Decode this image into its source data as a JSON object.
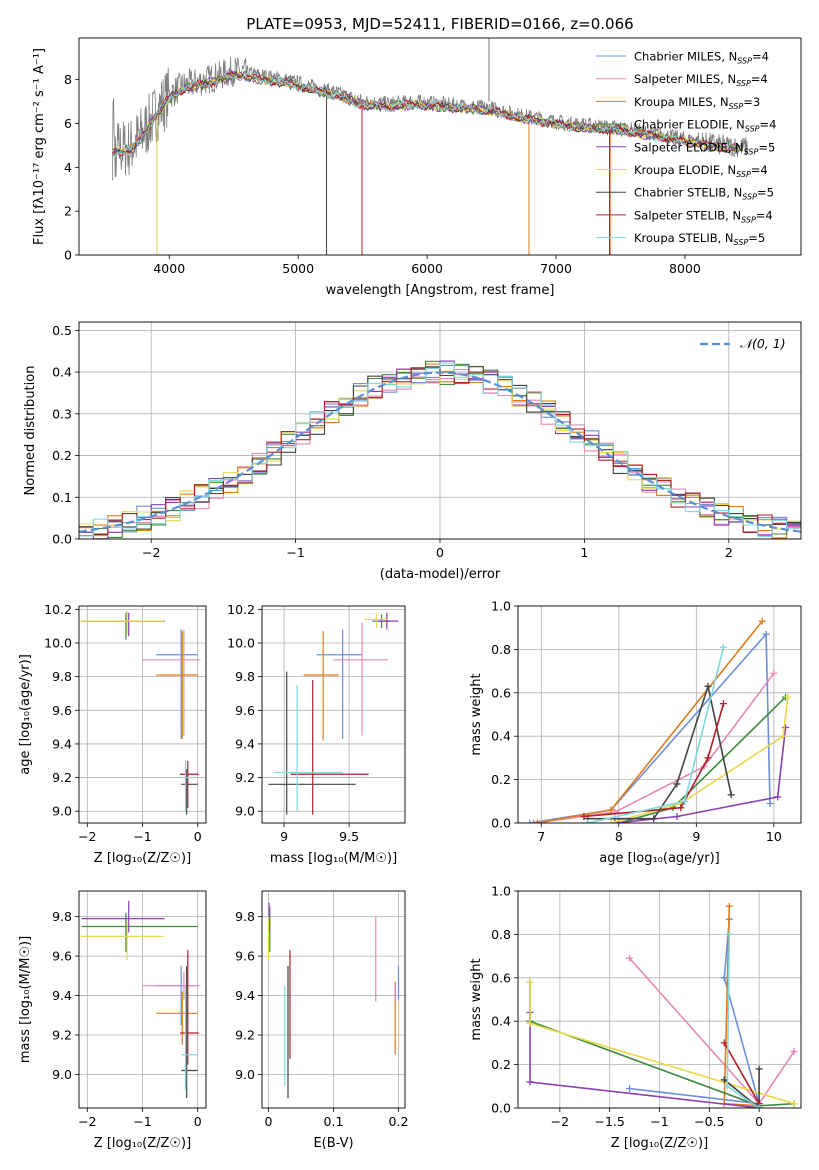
{
  "figure": {
    "title": "PLATE=0953, MJD=52411, FIBERID=0166, z=0.066"
  },
  "colors": {
    "Chabrier MILES": "#6b8fd8",
    "Salpeter MILES": "#e58ab8",
    "Kroupa MILES": "#e07b1a",
    "Chabrier ELODIE": "#3c8a3c",
    "Salpeter ELODIE": "#8e3fb5",
    "Kroupa ELODIE": "#e8d84a",
    "Chabrier STELIB": "#444444",
    "Salpeter STELIB": "#b0202a",
    "Kroupa STELIB": "#7fd8dc",
    "data": "#7f7f7f"
  },
  "chart_data": [
    {
      "id": "spectrum",
      "type": "line",
      "xlabel": "wavelength [Angstrom, rest frame]",
      "ylabel": "Flux [fλ10⁻¹⁷ erg cm⁻² s⁻¹ A⁻¹]",
      "xlim": [
        3300,
        8900
      ],
      "ylim": [
        0,
        9.9
      ],
      "xticks": [
        4000,
        5000,
        6000,
        7000,
        8000
      ],
      "yticks": [
        0,
        2,
        4,
        6,
        8
      ],
      "legend": "right",
      "legend_entries": [
        {
          "model": "Chabrier MILES",
          "n": "4"
        },
        {
          "model": "Salpeter MILES",
          "n": "4"
        },
        {
          "model": "Kroupa MILES",
          "n": "3"
        },
        {
          "model": "Chabrier ELODIE",
          "n": "4"
        },
        {
          "model": "Salpeter ELODIE",
          "n": "5"
        },
        {
          "model": "Kroupa ELODIE",
          "n": "4"
        },
        {
          "model": "Chabrier STELIB",
          "n": "5"
        },
        {
          "model": "Salpeter STELIB",
          "n": "4"
        },
        {
          "model": "Kroupa STELIB",
          "n": "5"
        }
      ],
      "continuum": [
        [
          3560,
          4.8
        ],
        [
          3700,
          4.9
        ],
        [
          3800,
          5.6
        ],
        [
          3900,
          6.5
        ],
        [
          4000,
          7.3
        ],
        [
          4100,
          7.7
        ],
        [
          4300,
          8.0
        ],
        [
          4500,
          8.4
        ],
        [
          4700,
          8.2
        ],
        [
          4900,
          8.0
        ],
        [
          5100,
          7.7
        ],
        [
          5300,
          7.4
        ],
        [
          5500,
          7.0
        ],
        [
          5700,
          6.9
        ],
        [
          5900,
          7.0
        ],
        [
          6100,
          6.9
        ],
        [
          6300,
          6.8
        ],
        [
          6500,
          6.7
        ],
        [
          6700,
          6.4
        ],
        [
          6900,
          6.2
        ],
        [
          7100,
          6.0
        ],
        [
          7300,
          5.9
        ],
        [
          7500,
          5.8
        ],
        [
          7700,
          5.6
        ],
        [
          7900,
          5.4
        ],
        [
          8100,
          5.2
        ],
        [
          8300,
          5.0
        ],
        [
          8500,
          4.9
        ]
      ]
    },
    {
      "id": "histogram",
      "type": "bar",
      "xlabel": "(data-model)/error",
      "ylabel": "Normed distribution",
      "xlim": [
        -2.5,
        2.5
      ],
      "ylim": [
        0,
        0.52
      ],
      "xticks": [
        -2,
        -1,
        0,
        1,
        2
      ],
      "yticks": [
        0.0,
        0.1,
        0.2,
        0.3,
        0.4,
        0.5
      ],
      "legend_label": "𝒩(0, 1)",
      "bin_width": 0.1
    },
    {
      "id": "age-vs-z",
      "type": "scatter",
      "xlabel": "Z [log₁₀(Z/Z☉)]",
      "ylabel": "age [log₁₀(age/yr)]",
      "xlim": [
        -2.15,
        0.15
      ],
      "ylim": [
        8.93,
        10.22
      ],
      "xticks": [
        -2,
        -1,
        0
      ],
      "yticks": [
        9.0,
        9.2,
        9.4,
        9.6,
        9.8,
        10.0,
        10.2
      ],
      "points": [
        {
          "model": "Chabrier MILES",
          "x": -0.3,
          "y": 9.93,
          "xe": [
            -0.75,
            0.0
          ],
          "ye": [
            9.43,
            10.08
          ]
        },
        {
          "model": "Salpeter MILES",
          "x": -0.25,
          "y": 9.9,
          "xe": [
            -1.0,
            0.05
          ],
          "ye": [
            9.45,
            10.08
          ]
        },
        {
          "model": "Kroupa MILES",
          "x": -0.28,
          "y": 9.81,
          "xe": [
            -0.75,
            0.0
          ],
          "ye": [
            9.43,
            10.07
          ]
        },
        {
          "model": "Chabrier ELODIE",
          "x": -1.3,
          "y": 10.13,
          "xe": [
            -2.1,
            -0.65
          ],
          "ye": [
            10.02,
            10.18
          ]
        },
        {
          "model": "Salpeter ELODIE",
          "x": -1.25,
          "y": 10.13,
          "xe": [
            -2.1,
            -0.6
          ],
          "ye": [
            10.04,
            10.18
          ]
        },
        {
          "model": "Kroupa ELODIE",
          "x": -1.28,
          "y": 10.13,
          "xe": [
            -2.12,
            -0.62
          ],
          "ye": [
            10.05,
            10.19
          ]
        },
        {
          "model": "Chabrier STELIB",
          "x": -0.2,
          "y": 9.16,
          "xe": [
            -0.3,
            0.0
          ],
          "ye": [
            8.98,
            9.25
          ]
        },
        {
          "model": "Salpeter STELIB",
          "x": -0.18,
          "y": 9.22,
          "xe": [
            -0.32,
            0.02
          ],
          "ye": [
            9.02,
            9.3
          ]
        },
        {
          "model": "Kroupa STELIB",
          "x": -0.22,
          "y": 9.2,
          "xe": [
            -0.3,
            -0.02
          ],
          "ye": [
            9.0,
            9.3
          ]
        }
      ]
    },
    {
      "id": "age-vs-mass",
      "type": "scatter",
      "xlabel": "mass [log₁₀(M/M☉)]",
      "ylabel": "",
      "xlim": [
        8.83,
        9.93
      ],
      "ylim": [
        8.93,
        10.22
      ],
      "xticks": [
        9.0,
        9.5
      ],
      "yticks": [
        9.0,
        9.2,
        9.4,
        9.6,
        9.8,
        10.0,
        10.2
      ],
      "points": [
        {
          "model": "Chabrier MILES",
          "x": 9.45,
          "y": 9.93,
          "xe": [
            9.25,
            9.6
          ],
          "ye": [
            9.43,
            10.08
          ]
        },
        {
          "model": "Salpeter MILES",
          "x": 9.6,
          "y": 9.9,
          "xe": [
            9.38,
            9.8
          ],
          "ye": [
            9.45,
            10.12
          ]
        },
        {
          "model": "Kroupa MILES",
          "x": 9.3,
          "y": 9.81,
          "xe": [
            9.15,
            9.42
          ],
          "ye": [
            9.42,
            10.07
          ]
        },
        {
          "model": "Chabrier ELODIE",
          "x": 9.75,
          "y": 10.13,
          "xe": [
            9.68,
            9.82
          ],
          "ye": [
            10.09,
            10.17
          ]
        },
        {
          "model": "Salpeter ELODIE",
          "x": 9.79,
          "y": 10.13,
          "xe": [
            9.72,
            9.88
          ],
          "ye": [
            10.08,
            10.18
          ]
        },
        {
          "model": "Kroupa ELODIE",
          "x": 9.71,
          "y": 10.14,
          "xe": [
            9.62,
            9.8
          ],
          "ye": [
            10.09,
            10.18
          ]
        },
        {
          "model": "Chabrier STELIB",
          "x": 9.02,
          "y": 9.16,
          "xe": [
            8.88,
            9.55
          ],
          "ye": [
            8.98,
            9.83
          ]
        },
        {
          "model": "Salpeter STELIB",
          "x": 9.22,
          "y": 9.22,
          "xe": [
            9.05,
            9.65
          ],
          "ye": [
            8.98,
            9.78
          ]
        },
        {
          "model": "Kroupa STELIB",
          "x": 9.1,
          "y": 9.23,
          "xe": [
            8.92,
            9.45
          ],
          "ye": [
            9.0,
            9.75
          ]
        }
      ]
    },
    {
      "id": "massweight-vs-age",
      "type": "line",
      "xlabel": "age [log₁₀(age/yr)]",
      "ylabel": "mass weight",
      "xlim": [
        6.7,
        10.35
      ],
      "ylim": [
        0.0,
        1.0
      ],
      "xticks": [
        7,
        8,
        9,
        10
      ],
      "yticks": [
        0.0,
        0.2,
        0.4,
        0.6,
        0.8,
        1.0
      ],
      "series": [
        {
          "model": "Chabrier MILES",
          "points": [
            [
              6.85,
              0.0
            ],
            [
              7.9,
              0.06
            ],
            [
              9.9,
              0.87
            ],
            [
              9.95,
              0.09
            ]
          ]
        },
        {
          "model": "Salpeter MILES",
          "points": [
            [
              6.9,
              0.0
            ],
            [
              7.95,
              0.05
            ],
            [
              9.1,
              0.26
            ],
            [
              10.0,
              0.69
            ]
          ]
        },
        {
          "model": "Kroupa MILES",
          "points": [
            [
              6.95,
              0.0
            ],
            [
              7.9,
              0.06
            ],
            [
              9.85,
              0.93
            ]
          ]
        },
        {
          "model": "Chabrier ELODIE",
          "points": [
            [
              8.0,
              0.0
            ],
            [
              8.7,
              0.07
            ],
            [
              10.15,
              0.58
            ]
          ]
        },
        {
          "model": "Salpeter ELODIE",
          "points": [
            [
              7.95,
              0.0
            ],
            [
              8.75,
              0.03
            ],
            [
              10.05,
              0.12
            ],
            [
              10.15,
              0.44
            ]
          ]
        },
        {
          "model": "Kroupa ELODIE",
          "points": [
            [
              7.9,
              0.0
            ],
            [
              8.8,
              0.09
            ],
            [
              10.12,
              0.4
            ],
            [
              10.18,
              0.58
            ]
          ]
        },
        {
          "model": "Chabrier STELIB",
          "points": [
            [
              7.6,
              0.02
            ],
            [
              8.45,
              0.02
            ],
            [
              8.75,
              0.18
            ],
            [
              9.15,
              0.63
            ],
            [
              9.45,
              0.13
            ]
          ]
        },
        {
          "model": "Salpeter STELIB",
          "points": [
            [
              7.55,
              0.03
            ],
            [
              8.8,
              0.07
            ],
            [
              9.15,
              0.3
            ],
            [
              9.35,
              0.55
            ]
          ]
        },
        {
          "model": "Kroupa STELIB",
          "points": [
            [
              7.6,
              0.0
            ],
            [
              8.85,
              0.1
            ],
            [
              9.35,
              0.81
            ]
          ]
        }
      ]
    },
    {
      "id": "mass-vs-z",
      "type": "scatter",
      "xlabel": "Z [log₁₀(Z/Z☉)]",
      "ylabel": "mass [log₁₀(M/M☉)]",
      "xlim": [
        -2.15,
        0.15
      ],
      "ylim": [
        8.83,
        9.93
      ],
      "xticks": [
        -2,
        -1,
        0
      ],
      "yticks": [
        9.0,
        9.2,
        9.4,
        9.6,
        9.8
      ],
      "points": [
        {
          "model": "Chabrier MILES",
          "x": -0.3,
          "y": 9.45,
          "xe": [
            -0.75,
            0.0
          ],
          "ye": [
            9.25,
            9.55
          ]
        },
        {
          "model": "Salpeter MILES",
          "x": -0.25,
          "y": 9.45,
          "xe": [
            -1.0,
            0.05
          ],
          "ye": [
            9.38,
            9.52
          ]
        },
        {
          "model": "Kroupa MILES",
          "x": -0.28,
          "y": 9.31,
          "xe": [
            -0.75,
            0.0
          ],
          "ye": [
            9.15,
            9.42
          ]
        },
        {
          "model": "Chabrier ELODIE",
          "x": -1.3,
          "y": 9.75,
          "xe": [
            -2.1,
            0.0
          ],
          "ye": [
            9.62,
            9.82
          ]
        },
        {
          "model": "Salpeter ELODIE",
          "x": -1.25,
          "y": 9.79,
          "xe": [
            -2.1,
            -0.6
          ],
          "ye": [
            9.72,
            9.88
          ]
        },
        {
          "model": "Kroupa ELODIE",
          "x": -1.28,
          "y": 9.7,
          "xe": [
            -2.12,
            -0.62
          ],
          "ye": [
            9.58,
            9.78
          ]
        },
        {
          "model": "Chabrier STELIB",
          "x": -0.2,
          "y": 9.02,
          "xe": [
            -0.3,
            0.0
          ],
          "ye": [
            8.88,
            9.55
          ]
        },
        {
          "model": "Salpeter STELIB",
          "x": -0.18,
          "y": 9.21,
          "xe": [
            -0.32,
            0.02
          ],
          "ye": [
            9.05,
            9.63
          ]
        },
        {
          "model": "Kroupa STELIB",
          "x": -0.22,
          "y": 9.1,
          "xe": [
            -0.3,
            0.0
          ],
          "ye": [
            8.92,
            9.45
          ]
        }
      ]
    },
    {
      "id": "mass-vs-ebv",
      "type": "scatter",
      "xlabel": "E(B-V)",
      "ylabel": "",
      "xlim": [
        -0.01,
        0.21
      ],
      "ylim": [
        8.83,
        9.93
      ],
      "xticks": [
        0.0,
        0.1,
        0.2
      ],
      "yticks": [
        9.0,
        9.2,
        9.4,
        9.6,
        9.8
      ],
      "points": [
        {
          "model": "Chabrier MILES",
          "x": 0.2,
          "y": 9.45,
          "ye": [
            9.38,
            9.55
          ]
        },
        {
          "model": "Salpeter MILES",
          "x": 0.165,
          "y": 9.6,
          "ye": [
            9.37,
            9.8
          ]
        },
        {
          "model": "Kroupa MILES",
          "x": 0.195,
          "y": 9.31,
          "ye": [
            9.1,
            9.47
          ]
        },
        {
          "model": "Chabrier ELODIE",
          "x": 0.002,
          "y": 9.75,
          "ye": [
            9.62,
            9.85
          ]
        },
        {
          "model": "Salpeter ELODIE",
          "x": 0.001,
          "y": 9.8,
          "ye": [
            9.72,
            9.87
          ]
        },
        {
          "model": "Kroupa ELODIE",
          "x": 0.0,
          "y": 9.7,
          "ye": [
            9.58,
            9.8
          ]
        },
        {
          "model": "Chabrier STELIB",
          "x": 0.03,
          "y": 9.02,
          "ye": [
            8.88,
            9.55
          ]
        },
        {
          "model": "Salpeter STELIB",
          "x": 0.033,
          "y": 9.3,
          "ye": [
            9.08,
            9.63
          ]
        },
        {
          "model": "Kroupa STELIB",
          "x": 0.025,
          "y": 9.1,
          "ye": [
            8.94,
            9.45
          ]
        }
      ]
    },
    {
      "id": "massweight-vs-z",
      "type": "line",
      "xlabel": "Z [log₁₀(Z/Z☉)]",
      "ylabel": "mass weight",
      "xlim": [
        -2.42,
        0.42
      ],
      "ylim": [
        0.0,
        1.0
      ],
      "xticks": [
        -2.0,
        -1.5,
        -1.0,
        -0.5,
        0.0
      ],
      "yticks": [
        0.0,
        0.2,
        0.4,
        0.6,
        0.8,
        1.0
      ],
      "series": [
        {
          "model": "Chabrier MILES",
          "points": [
            [
              -1.3,
              0.09
            ],
            [
              0.0,
              0.02
            ],
            [
              -0.35,
              0.6
            ],
            [
              -0.3,
              0.87
            ]
          ]
        },
        {
          "model": "Salpeter MILES",
          "points": [
            [
              -1.3,
              0.69
            ],
            [
              0.0,
              0.02
            ],
            [
              0.35,
              0.26
            ]
          ]
        },
        {
          "model": "Kroupa MILES",
          "points": [
            [
              -0.3,
              0.93
            ],
            [
              -0.35,
              0.02
            ],
            [
              0.0,
              0.01
            ]
          ]
        },
        {
          "model": "Chabrier ELODIE",
          "points": [
            [
              -2.3,
              0.58
            ],
            [
              -2.3,
              0.4
            ],
            [
              0.0,
              0.01
            ],
            [
              0.35,
              0.02
            ]
          ]
        },
        {
          "model": "Salpeter ELODIE",
          "points": [
            [
              -2.3,
              0.44
            ],
            [
              -2.3,
              0.12
            ],
            [
              0.0,
              0.0
            ]
          ]
        },
        {
          "model": "Kroupa ELODIE",
          "points": [
            [
              -2.3,
              0.58
            ],
            [
              -2.3,
              0.39
            ],
            [
              0.35,
              0.02
            ]
          ]
        },
        {
          "model": "Chabrier STELIB",
          "points": [
            [
              -0.35,
              0.13
            ],
            [
              0.0,
              0.0
            ],
            [
              0.0,
              0.18
            ]
          ]
        },
        {
          "model": "Salpeter STELIB",
          "points": [
            [
              -0.35,
              0.3
            ],
            [
              0.0,
              0.02
            ]
          ]
        },
        {
          "model": "Kroupa STELIB",
          "points": [
            [
              -0.3,
              0.8
            ],
            [
              -0.32,
              0.1
            ],
            [
              0.0,
              0.0
            ]
          ]
        }
      ]
    }
  ]
}
